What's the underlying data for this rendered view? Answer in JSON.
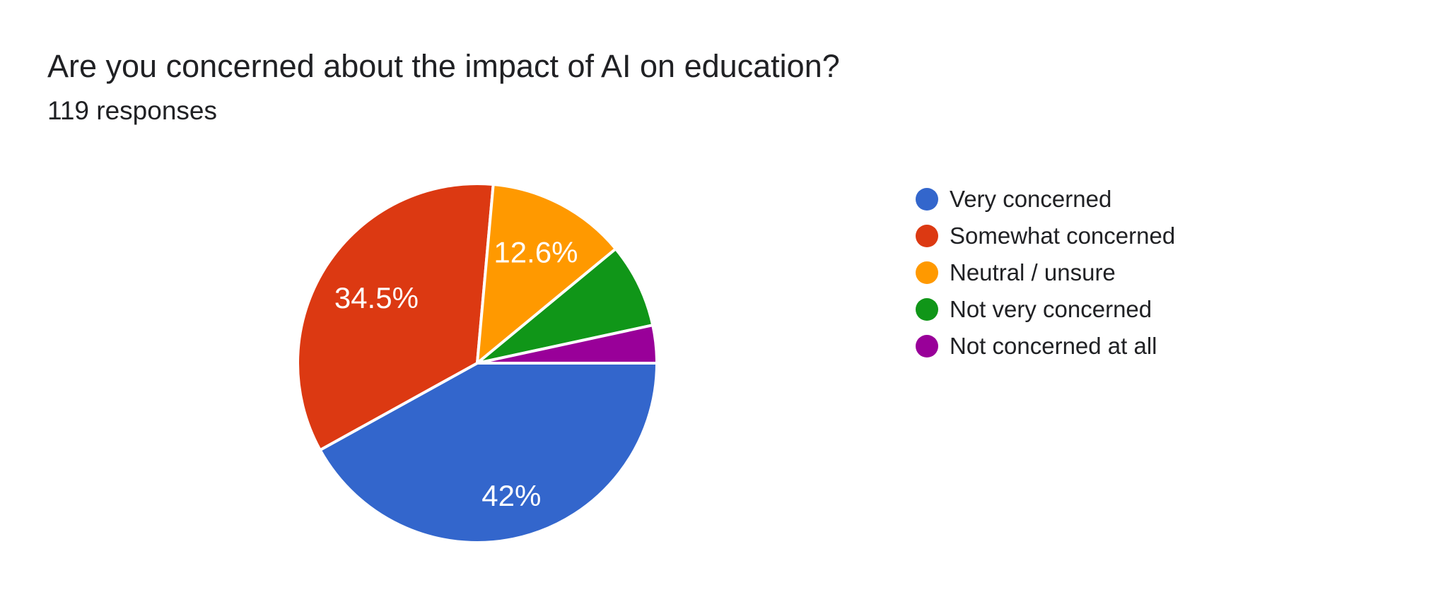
{
  "page": {
    "background": "#ffffff",
    "text_color": "#202124"
  },
  "chart_data": {
    "type": "pie",
    "title": "Are you concerned about the impact of AI on education?",
    "subtitle": "119 responses",
    "total_responses": 119,
    "legend_position": "right",
    "start_angle_deg": 0,
    "slice_border_color": "#ffffff",
    "slices": [
      {
        "label": "Very concerned",
        "percent": 42.0,
        "display_label": "42%",
        "color": "#3366cc"
      },
      {
        "label": "Somewhat concerned",
        "percent": 34.5,
        "display_label": "34.5%",
        "color": "#dc3912"
      },
      {
        "label": "Neutral / unsure",
        "percent": 12.6,
        "display_label": "12.6%",
        "color": "#ff9900"
      },
      {
        "label": "Not very concerned",
        "percent": 7.6,
        "display_label": "",
        "color": "#109618"
      },
      {
        "label": "Not concerned at all",
        "percent": 3.4,
        "display_label": "",
        "color": "#990099"
      }
    ]
  }
}
